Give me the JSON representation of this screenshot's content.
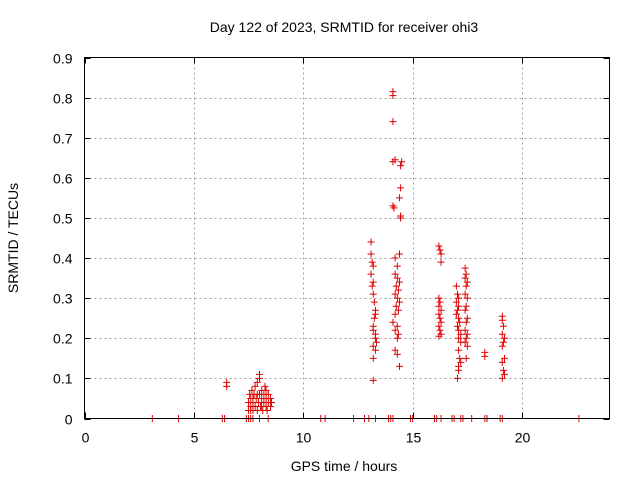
{
  "chart_data": {
    "type": "scatter",
    "title": "Day 122 of 2023, SRMTID for receiver ohi3",
    "xlabel": "GPS time / hours",
    "ylabel": "SRMTID / TECUs",
    "xlim": [
      0,
      24
    ],
    "ylim": [
      0,
      0.9
    ],
    "x_ticks": [
      "0",
      "5",
      "10",
      "15",
      "20"
    ],
    "y_ticks": [
      "0",
      "0.1",
      "0.2",
      "0.3",
      "0.4",
      "0.5",
      "0.6",
      "0.7",
      "0.8",
      "0.9"
    ],
    "x_tick_values": [
      0,
      5,
      10,
      15,
      20
    ],
    "y_tick_values": [
      0,
      0.1,
      0.2,
      0.3,
      0.4,
      0.5,
      0.6,
      0.7,
      0.8,
      0.9
    ],
    "grid": true,
    "marker": "+",
    "color": "#e00000",
    "series": [
      {
        "name": "ohi3",
        "points": [
          [
            3.1,
            0.0
          ],
          [
            4.3,
            0.0
          ],
          [
            6.3,
            0.0
          ],
          [
            6.4,
            0.0
          ],
          [
            7.4,
            0.0
          ],
          [
            7.5,
            0.0
          ],
          [
            7.6,
            0.0
          ],
          [
            7.7,
            0.0
          ],
          [
            8.0,
            0.0
          ],
          [
            8.4,
            0.0
          ],
          [
            10.8,
            0.0
          ],
          [
            11.0,
            0.0
          ],
          [
            12.3,
            0.0
          ],
          [
            12.8,
            0.0
          ],
          [
            13.0,
            0.0
          ],
          [
            13.3,
            0.0
          ],
          [
            13.9,
            0.0
          ],
          [
            14.0,
            0.0
          ],
          [
            14.1,
            0.0
          ],
          [
            14.9,
            0.0
          ],
          [
            15.0,
            0.0
          ],
          [
            16.0,
            0.0
          ],
          [
            16.1,
            0.0
          ],
          [
            16.3,
            0.0
          ],
          [
            16.8,
            0.0
          ],
          [
            16.9,
            0.0
          ],
          [
            17.2,
            0.0
          ],
          [
            17.3,
            0.0
          ],
          [
            17.7,
            0.0
          ],
          [
            18.3,
            0.0
          ],
          [
            18.4,
            0.0
          ],
          [
            19.0,
            0.0
          ],
          [
            19.1,
            0.0
          ],
          [
            22.6,
            0.0
          ],
          [
            6.5,
            0.08
          ],
          [
            6.5,
            0.09
          ],
          [
            7.5,
            0.02
          ],
          [
            7.5,
            0.04
          ],
          [
            7.55,
            0.06
          ],
          [
            7.6,
            0.03
          ],
          [
            7.6,
            0.05
          ],
          [
            7.65,
            0.07
          ],
          [
            7.7,
            0.02
          ],
          [
            7.7,
            0.04
          ],
          [
            7.75,
            0.06
          ],
          [
            7.8,
            0.08
          ],
          [
            7.8,
            0.03
          ],
          [
            7.85,
            0.05
          ],
          [
            7.9,
            0.09
          ],
          [
            7.9,
            0.02
          ],
          [
            7.95,
            0.04
          ],
          [
            8.0,
            0.06
          ],
          [
            8.0,
            0.1
          ],
          [
            8.0,
            0.11
          ],
          [
            8.05,
            0.03
          ],
          [
            8.1,
            0.05
          ],
          [
            8.1,
            0.07
          ],
          [
            8.15,
            0.02
          ],
          [
            8.2,
            0.04
          ],
          [
            8.2,
            0.06
          ],
          [
            8.25,
            0.08
          ],
          [
            8.3,
            0.03
          ],
          [
            8.3,
            0.05
          ],
          [
            8.35,
            0.02
          ],
          [
            8.4,
            0.04
          ],
          [
            8.4,
            0.06
          ],
          [
            8.5,
            0.03
          ],
          [
            8.5,
            0.05
          ],
          [
            8.55,
            0.04
          ],
          [
            7.7,
            0.05
          ],
          [
            7.9,
            0.06
          ],
          [
            8.1,
            0.03
          ],
          [
            8.3,
            0.07
          ],
          [
            7.6,
            0.02
          ],
          [
            13.1,
            0.44
          ],
          [
            13.1,
            0.41
          ],
          [
            13.15,
            0.39
          ],
          [
            13.2,
            0.38
          ],
          [
            13.1,
            0.36
          ],
          [
            13.2,
            0.34
          ],
          [
            13.15,
            0.33
          ],
          [
            13.2,
            0.31
          ],
          [
            13.25,
            0.29
          ],
          [
            13.3,
            0.27
          ],
          [
            13.3,
            0.26
          ],
          [
            13.25,
            0.25
          ],
          [
            13.2,
            0.23
          ],
          [
            13.2,
            0.22
          ],
          [
            13.3,
            0.21
          ],
          [
            13.3,
            0.2
          ],
          [
            13.35,
            0.19
          ],
          [
            13.2,
            0.18
          ],
          [
            13.3,
            0.17
          ],
          [
            13.2,
            0.15
          ],
          [
            13.2,
            0.095
          ],
          [
            14.1,
            0.815
          ],
          [
            14.1,
            0.805
          ],
          [
            14.1,
            0.74
          ],
          [
            14.1,
            0.64
          ],
          [
            14.2,
            0.645
          ],
          [
            14.1,
            0.53
          ],
          [
            14.15,
            0.525
          ],
          [
            14.5,
            0.64
          ],
          [
            14.45,
            0.63
          ],
          [
            14.45,
            0.575
          ],
          [
            14.4,
            0.55
          ],
          [
            14.45,
            0.505
          ],
          [
            14.45,
            0.5
          ],
          [
            14.4,
            0.41
          ],
          [
            14.2,
            0.4
          ],
          [
            14.3,
            0.38
          ],
          [
            14.2,
            0.36
          ],
          [
            14.3,
            0.35
          ],
          [
            14.4,
            0.34
          ],
          [
            14.25,
            0.33
          ],
          [
            14.35,
            0.32
          ],
          [
            14.2,
            0.31
          ],
          [
            14.3,
            0.3
          ],
          [
            14.4,
            0.29
          ],
          [
            14.25,
            0.28
          ],
          [
            14.35,
            0.27
          ],
          [
            14.2,
            0.26
          ],
          [
            14.1,
            0.24
          ],
          [
            14.3,
            0.23
          ],
          [
            14.2,
            0.22
          ],
          [
            14.35,
            0.21
          ],
          [
            14.3,
            0.2
          ],
          [
            14.2,
            0.17
          ],
          [
            14.3,
            0.16
          ],
          [
            14.4,
            0.13
          ],
          [
            16.2,
            0.43
          ],
          [
            16.25,
            0.42
          ],
          [
            16.3,
            0.41
          ],
          [
            16.3,
            0.39
          ],
          [
            16.2,
            0.3
          ],
          [
            16.25,
            0.29
          ],
          [
            16.2,
            0.28
          ],
          [
            16.3,
            0.27
          ],
          [
            16.2,
            0.26
          ],
          [
            16.25,
            0.25
          ],
          [
            16.3,
            0.24
          ],
          [
            16.2,
            0.23
          ],
          [
            16.25,
            0.22
          ],
          [
            16.3,
            0.21
          ],
          [
            16.2,
            0.205
          ],
          [
            17.0,
            0.33
          ],
          [
            17.05,
            0.31
          ],
          [
            17.1,
            0.3
          ],
          [
            17.0,
            0.29
          ],
          [
            17.1,
            0.28
          ],
          [
            17.05,
            0.27
          ],
          [
            17.0,
            0.26
          ],
          [
            17.1,
            0.25
          ],
          [
            17.15,
            0.24
          ],
          [
            17.05,
            0.23
          ],
          [
            17.1,
            0.22
          ],
          [
            17.2,
            0.21
          ],
          [
            17.1,
            0.2
          ],
          [
            17.2,
            0.19
          ],
          [
            17.1,
            0.17
          ],
          [
            17.15,
            0.15
          ],
          [
            17.1,
            0.13
          ],
          [
            17.1,
            0.12
          ],
          [
            17.05,
            0.1
          ],
          [
            17.2,
            0.14
          ],
          [
            17.4,
            0.375
          ],
          [
            17.45,
            0.36
          ],
          [
            17.4,
            0.35
          ],
          [
            17.5,
            0.34
          ],
          [
            17.45,
            0.33
          ],
          [
            17.4,
            0.31
          ],
          [
            17.5,
            0.3
          ],
          [
            17.45,
            0.28
          ],
          [
            17.4,
            0.27
          ],
          [
            17.5,
            0.25
          ],
          [
            17.45,
            0.24
          ],
          [
            17.4,
            0.22
          ],
          [
            17.5,
            0.21
          ],
          [
            17.45,
            0.2
          ],
          [
            17.4,
            0.19
          ],
          [
            17.5,
            0.18
          ],
          [
            17.45,
            0.15
          ],
          [
            18.3,
            0.165
          ],
          [
            18.3,
            0.155
          ],
          [
            19.1,
            0.255
          ],
          [
            19.1,
            0.245
          ],
          [
            19.15,
            0.23
          ],
          [
            19.1,
            0.21
          ],
          [
            19.2,
            0.2
          ],
          [
            19.15,
            0.19
          ],
          [
            19.1,
            0.18
          ],
          [
            19.2,
            0.15
          ],
          [
            19.1,
            0.14
          ],
          [
            19.15,
            0.12
          ],
          [
            19.2,
            0.11
          ],
          [
            19.1,
            0.1
          ]
        ]
      }
    ]
  }
}
